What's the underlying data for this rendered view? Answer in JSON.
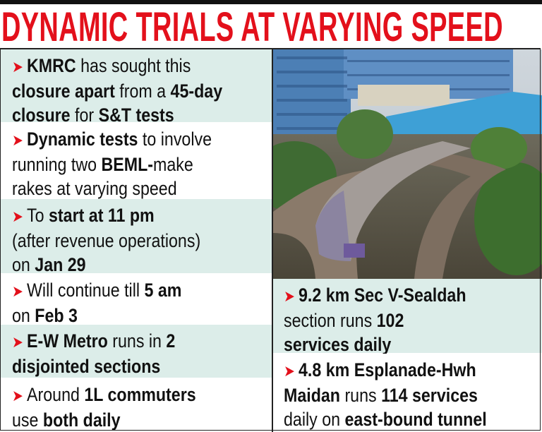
{
  "title": "DYNAMIC TRIALS AT VARYING SPEED",
  "colors": {
    "accent": "#e3101b",
    "teal_row": "#dcede9"
  },
  "bullet_icon": "red-arrow-icon",
  "left_bullets": [
    {
      "lines": [
        [
          {
            "t": "KMRC",
            "b": true
          },
          {
            "t": " has sought this",
            "b": false
          }
        ],
        [
          {
            "t": "closure apart",
            "b": true
          },
          {
            "t": " from a ",
            "b": false
          },
          {
            "t": "45-day",
            "b": true
          }
        ],
        [
          {
            "t": "closure",
            "b": true
          },
          {
            "t": " for ",
            "b": false
          },
          {
            "t": "S&T tests",
            "b": true
          }
        ]
      ]
    },
    {
      "lines": [
        [
          {
            "t": "Dynamic tests",
            "b": true
          },
          {
            "t": " to involve",
            "b": false
          }
        ],
        [
          {
            "t": "running two ",
            "b": false
          },
          {
            "t": "BEML-",
            "b": true
          },
          {
            "t": "make",
            "b": false
          }
        ],
        [
          {
            "t": "rakes at varying speed",
            "b": false
          }
        ]
      ]
    },
    {
      "lines": [
        [
          {
            "t": "To ",
            "b": false
          },
          {
            "t": "start at 11 pm",
            "b": true
          }
        ],
        [
          {
            "t": "(after revenue operations)",
            "b": false
          }
        ],
        [
          {
            "t": "on ",
            "b": false
          },
          {
            "t": "Jan 29",
            "b": true
          }
        ]
      ]
    },
    {
      "lines": [
        [
          {
            "t": "Will continue till ",
            "b": false
          },
          {
            "t": "5 am",
            "b": true
          }
        ],
        [
          {
            "t": "on ",
            "b": false
          },
          {
            "t": "Feb 3",
            "b": true
          }
        ]
      ]
    },
    {
      "lines": [
        [
          {
            "t": "E-W Metro",
            "b": true
          },
          {
            "t": " runs in ",
            "b": false
          },
          {
            "t": "2",
            "b": true
          }
        ],
        [
          {
            "t": "disjointed sections",
            "b": true
          }
        ]
      ]
    },
    {
      "lines": [
        [
          {
            "t": "Around ",
            "b": false
          },
          {
            "t": "1L commuters",
            "b": true
          }
        ],
        [
          {
            "t": "use ",
            "b": false
          },
          {
            "t": "both daily",
            "b": true
          }
        ]
      ]
    }
  ],
  "right_bullets": [
    {
      "lines": [
        [
          {
            "t": "9.2 km Sec V-Sealdah",
            "b": true
          }
        ],
        [
          {
            "t": "section runs ",
            "b": false
          },
          {
            "t": "102",
            "b": true
          }
        ],
        [
          {
            "t": "services daily",
            "b": true
          }
        ]
      ]
    },
    {
      "lines": [
        [
          {
            "t": "4.8 km Esplanade-Hwh",
            "b": true
          }
        ],
        [
          {
            "t": "Maidan",
            "b": true
          },
          {
            "t": " runs ",
            "b": false
          },
          {
            "t": "114 services",
            "b": true
          }
        ],
        [
          {
            "t": "daily on ",
            "b": false
          },
          {
            "t": "east-bound tunnel",
            "b": true
          }
        ]
      ]
    }
  ]
}
